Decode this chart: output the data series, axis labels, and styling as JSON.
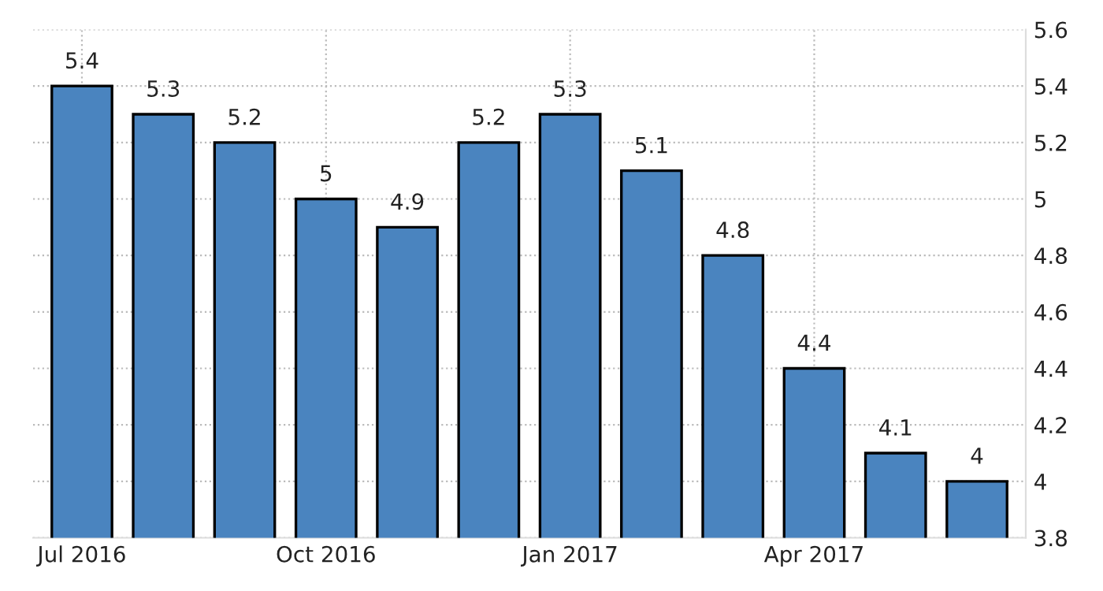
{
  "chart_data": {
    "type": "bar",
    "categories": [
      "Jul 2016",
      null,
      null,
      "Oct 2016",
      null,
      null,
      "Jan 2017",
      null,
      null,
      "Apr 2017",
      null,
      null
    ],
    "values": [
      5.4,
      5.3,
      5.2,
      5,
      4.9,
      5.2,
      5.3,
      5.1,
      4.8,
      4.4,
      4.1,
      4
    ],
    "color": "#4a84bf",
    "ylim": [
      3.8,
      5.6
    ],
    "yticks": [
      3.8,
      4,
      4.2,
      4.4,
      4.6,
      4.8,
      5,
      5.2,
      5.4,
      5.6
    ],
    "grid": true,
    "data_labels": true
  }
}
